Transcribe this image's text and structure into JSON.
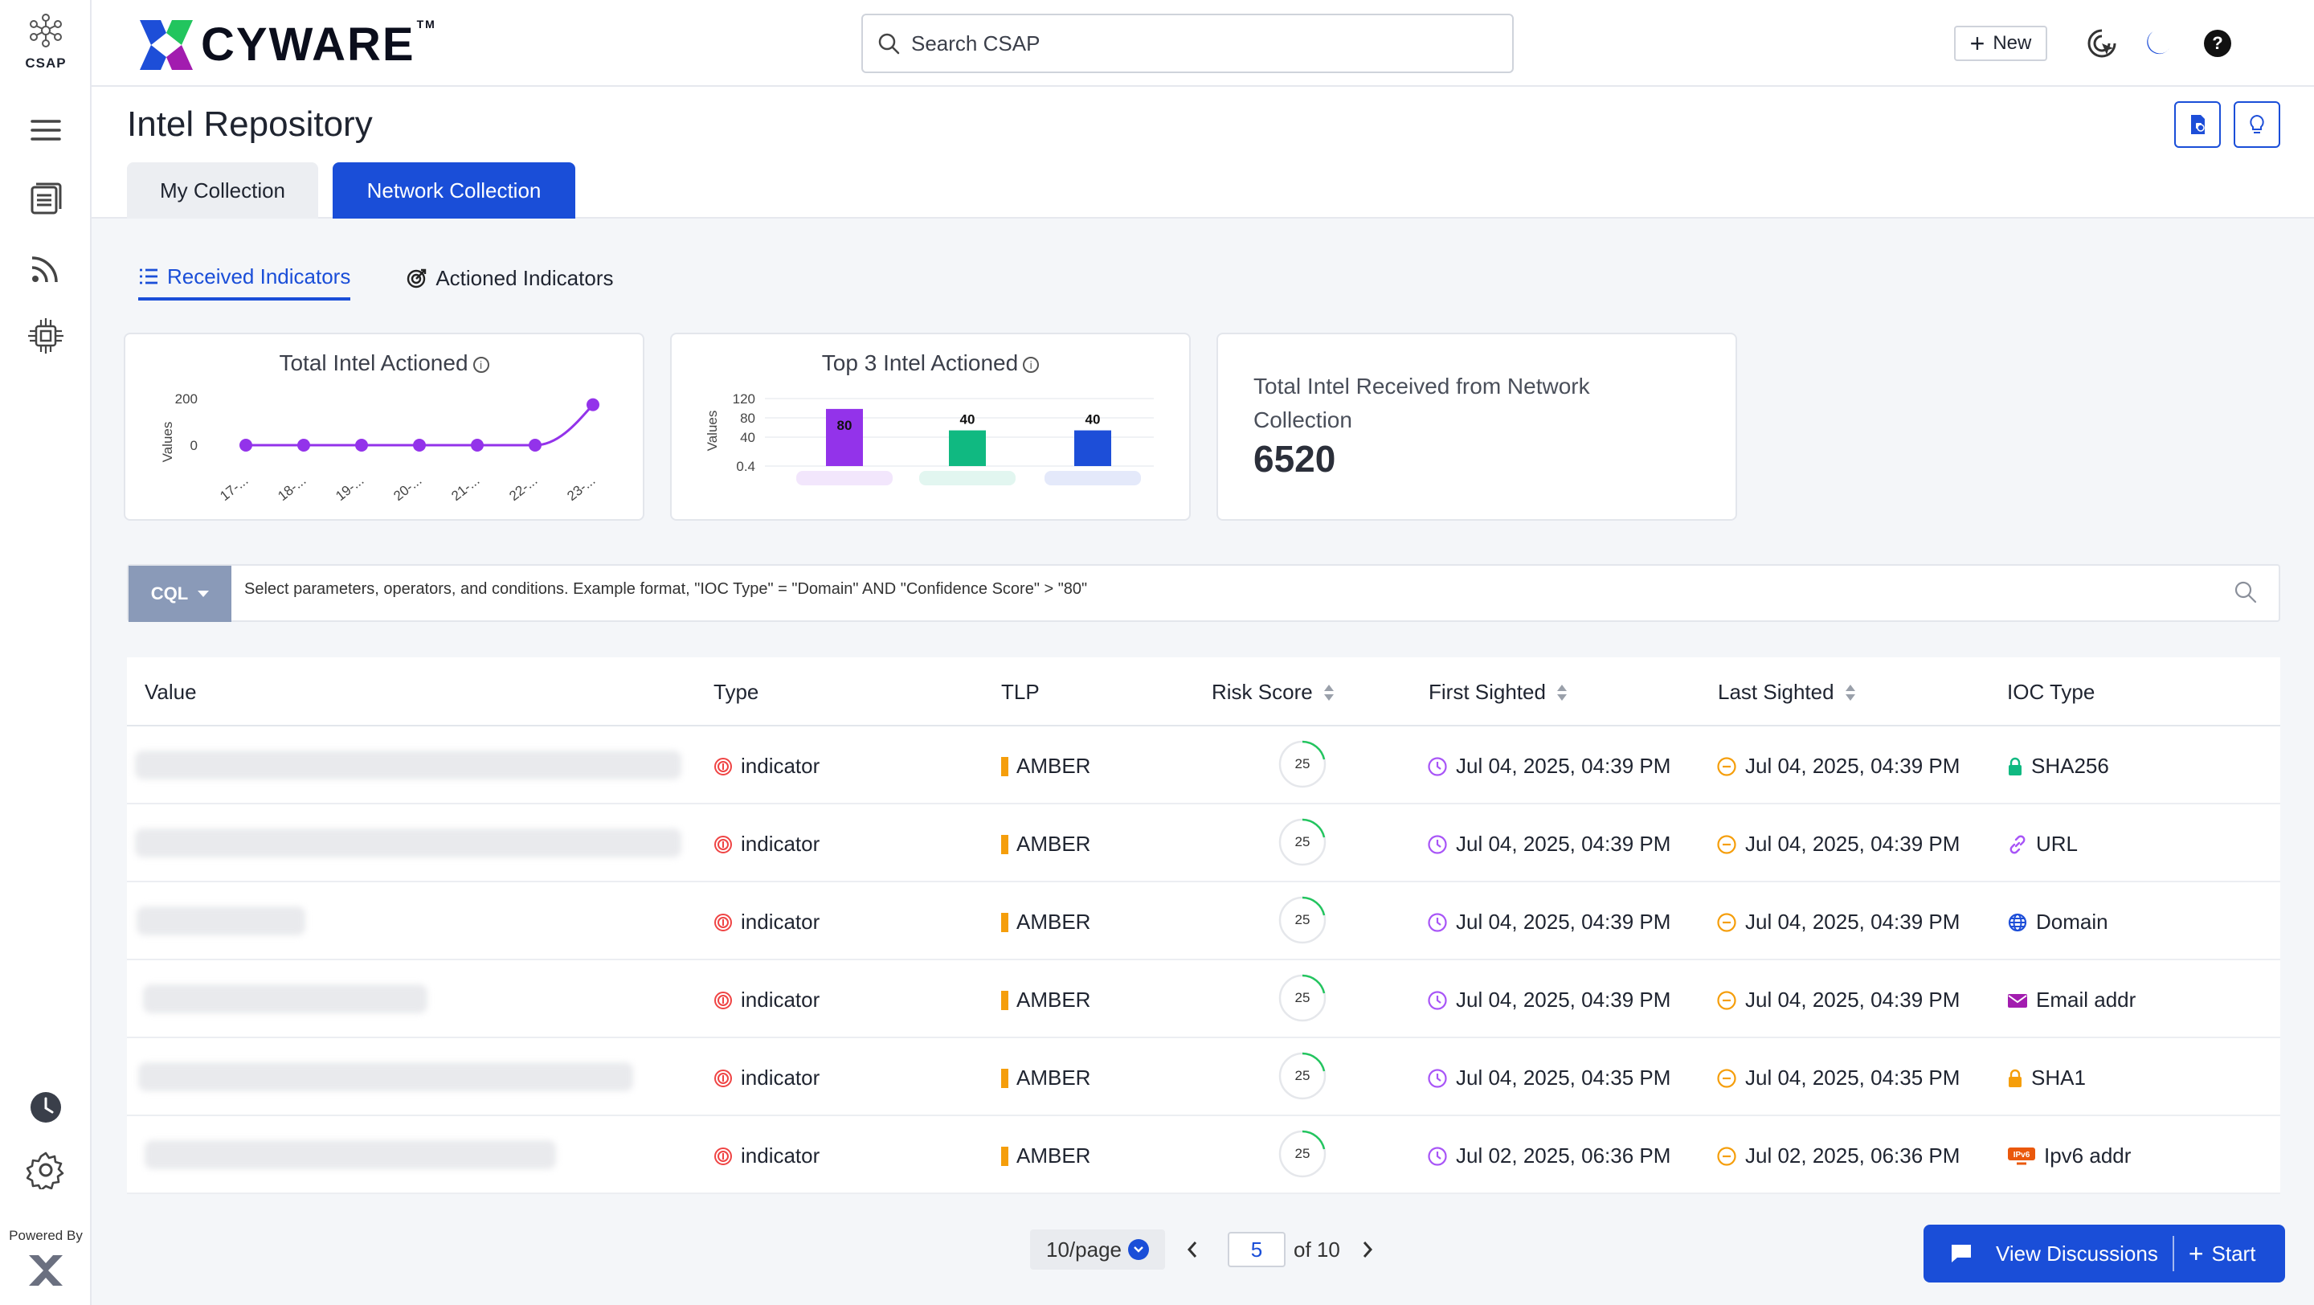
{
  "sidebar": {
    "app_label": "CSAP",
    "powered_by": "Powered By"
  },
  "topbar": {
    "brand": "CYWARE",
    "brand_tm": "TM",
    "search_placeholder": "Search CSAP",
    "new_label": "New"
  },
  "header": {
    "title": "Intel Repository",
    "tabs": [
      {
        "label": "My Collection",
        "active": false
      },
      {
        "label": "Network Collection",
        "active": true
      }
    ]
  },
  "subtabs": [
    {
      "label": "Received Indicators",
      "active": true
    },
    {
      "label": "Actioned Indicators",
      "active": false
    }
  ],
  "cards": {
    "total_intel_actioned": {
      "title": "Total Intel Actioned",
      "ylabel": "Values",
      "y_ticks": [
        "200",
        "0"
      ],
      "x_ticks": [
        "17-...",
        "18-...",
        "19-...",
        "20-...",
        "21-...",
        "22-...",
        "23-..."
      ]
    },
    "top3": {
      "title": "Top 3 Intel Actioned",
      "ylabel": "Values",
      "y_ticks": [
        "120",
        "80",
        "40",
        "0.4"
      ]
    },
    "total_received": {
      "label": "Total Intel Received from Network Collection",
      "value": "6520"
    }
  },
  "chart_data": [
    {
      "type": "line",
      "title": "Total Intel Actioned",
      "ylabel": "Values",
      "x": [
        "17-...",
        "18-...",
        "19-...",
        "20-...",
        "21-...",
        "22-...",
        "23-..."
      ],
      "values": [
        0,
        0,
        0,
        0,
        0,
        0,
        180
      ],
      "ylim": [
        -50,
        200
      ],
      "color": "#9333ea"
    },
    {
      "type": "bar",
      "title": "Top 3 Intel Actioned",
      "ylabel": "Values",
      "categories": [
        "",
        "",
        ""
      ],
      "values": [
        80,
        40,
        40
      ],
      "data_labels": [
        "80",
        "40",
        "40"
      ],
      "colors": [
        "#9333ea",
        "#10b981",
        "#1d4ed8"
      ],
      "ylim": [
        0.4,
        120
      ]
    }
  ],
  "cql": {
    "button_label": "CQL",
    "placeholder": "Select parameters, operators, and conditions. Example format, \"IOC Type\" = \"Domain\" AND \"Confidence Score\" > \"80\""
  },
  "table": {
    "headers": {
      "value": "Value",
      "type": "Type",
      "tlp": "TLP",
      "risk": "Risk Score",
      "first": "First Sighted",
      "last": "Last Sighted",
      "ioc": "IOC Type"
    },
    "rows": [
      {
        "type": "indicator",
        "tlp": "AMBER",
        "risk": "25",
        "first": "Jul 04, 2025, 04:39 PM",
        "last": "Jul 04, 2025, 04:39 PM",
        "ioc": "SHA256",
        "ioc_icon": "lock-icon",
        "ioc_color": "#10b981"
      },
      {
        "type": "indicator",
        "tlp": "AMBER",
        "risk": "25",
        "first": "Jul 04, 2025, 04:39 PM",
        "last": "Jul 04, 2025, 04:39 PM",
        "ioc": "URL",
        "ioc_icon": "link-icon",
        "ioc_color": "#a855f7"
      },
      {
        "type": "indicator",
        "tlp": "AMBER",
        "risk": "25",
        "first": "Jul 04, 2025, 04:39 PM",
        "last": "Jul 04, 2025, 04:39 PM",
        "ioc": "Domain",
        "ioc_icon": "globe-icon",
        "ioc_color": "#1d4ed8"
      },
      {
        "type": "indicator",
        "tlp": "AMBER",
        "risk": "25",
        "first": "Jul 04, 2025, 04:39 PM",
        "last": "Jul 04, 2025, 04:39 PM",
        "ioc": "Email addr",
        "ioc_icon": "envelope-icon",
        "ioc_color": "#a21caf"
      },
      {
        "type": "indicator",
        "tlp": "AMBER",
        "risk": "25",
        "first": "Jul 04, 2025, 04:35 PM",
        "last": "Jul 04, 2025, 04:35 PM",
        "ioc": "SHA1",
        "ioc_icon": "lock-icon",
        "ioc_color": "#f59e0b"
      },
      {
        "type": "indicator",
        "tlp": "AMBER",
        "risk": "25",
        "first": "Jul 02, 2025, 06:36 PM",
        "last": "Jul 02, 2025, 06:36 PM",
        "ioc": "Ipv6 addr",
        "ioc_icon": "ipv6-icon",
        "ioc_color": "#ea580c"
      }
    ]
  },
  "pagination": {
    "per_page": "10/page",
    "current": "5",
    "of_label": "of 10"
  },
  "discussions": {
    "view_label": "View Discussions",
    "start_label": "Start"
  },
  "colors": {
    "accent": "#1a4ed8",
    "amber": "#f59e0b",
    "purple": "#9333ea"
  }
}
